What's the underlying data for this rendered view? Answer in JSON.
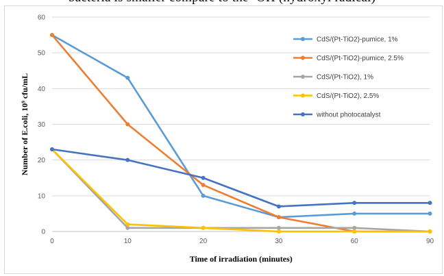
{
  "caption": "bacteria is smaller compare to the ·OH (hydroxyl radical)",
  "chart_data": {
    "type": "line",
    "x": [
      0,
      10,
      20,
      30,
      60,
      90
    ],
    "x_tick_labels": [
      "0",
      "10",
      "20",
      "30",
      "60",
      "90"
    ],
    "xlabel": "Time of irradiation (minutes)",
    "ylabel": "Number of E.coli, 10⁹ cfu/mL",
    "ylim": [
      0,
      60
    ],
    "y_ticks": [
      0,
      10,
      20,
      30,
      40,
      50,
      60
    ],
    "grid": "horizontal",
    "legend_position": "right",
    "series": [
      {
        "name": "CdS/(Pt-TiO2)-pumice, 1%",
        "color": "#5b9bd5",
        "values": [
          55,
          43,
          10,
          4,
          5,
          5
        ]
      },
      {
        "name": "CdS/(Pt-TiO2)-pumice, 2.5%",
        "color": "#ed7d31",
        "values": [
          55,
          30,
          13,
          4,
          0,
          0
        ]
      },
      {
        "name": "CdS/(Pt-TiO2), 1%",
        "color": "#a5a5a5",
        "values": [
          23,
          1,
          1,
          1,
          1,
          0
        ]
      },
      {
        "name": "CdS/(Pt-TiO2), 2.5%",
        "color": "#ffc000",
        "values": [
          23,
          2,
          1,
          0,
          0,
          0
        ]
      },
      {
        "name": "without photocatalyst",
        "color": "#4472c4",
        "values": [
          23,
          20,
          15,
          7,
          8,
          8
        ]
      }
    ]
  }
}
